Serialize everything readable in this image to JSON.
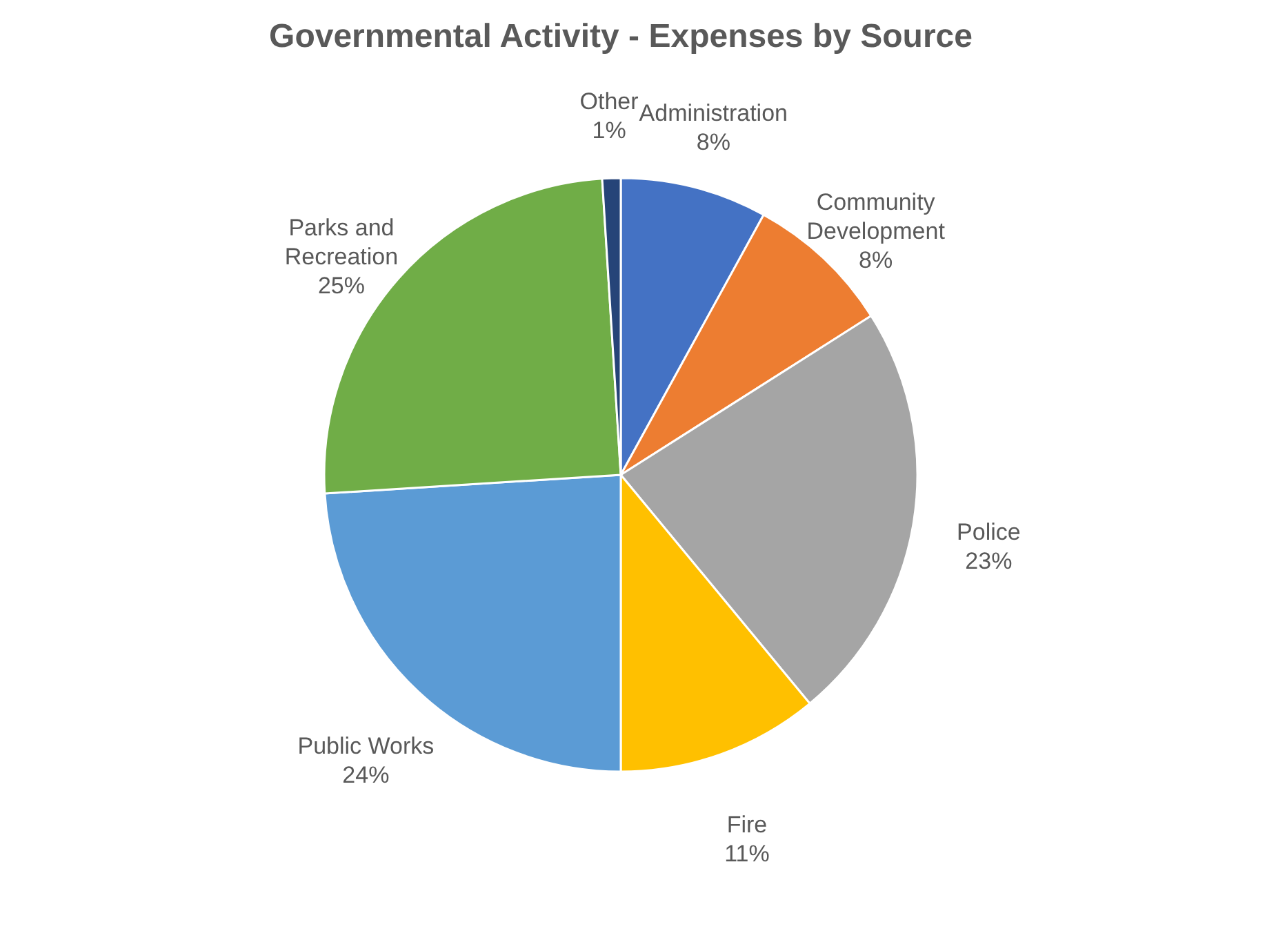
{
  "chart_data": {
    "type": "pie",
    "title": "Governmental Activity - Expenses by Source",
    "categories": [
      "Administration",
      "Community Development",
      "Police",
      "Fire",
      "Public Works",
      "Parks and Recreation",
      "Other"
    ],
    "values": [
      8,
      8,
      23,
      11,
      24,
      25,
      1
    ],
    "value_labels": [
      "8%",
      "8%",
      "23%",
      "11%",
      "24%",
      "25%",
      "1%"
    ],
    "colors": [
      "#4472c4",
      "#ed7d31",
      "#a5a5a5",
      "#ffc000",
      "#5b9bd5",
      "#70ad47",
      "#264478"
    ],
    "legend": false
  }
}
